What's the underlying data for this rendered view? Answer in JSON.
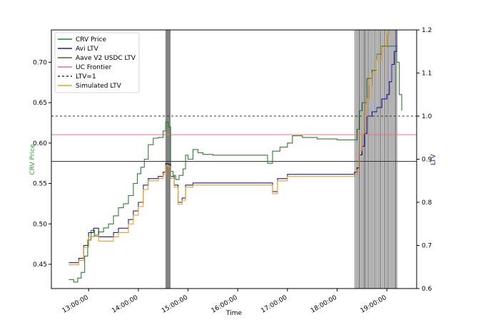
{
  "chart_data": {
    "type": "line",
    "x_axis": {
      "label": "Time",
      "ticks": [
        "13:00:00",
        "14:00:00",
        "15:00:00",
        "16:00:00",
        "17:00:00",
        "18:00:00",
        "19:00:00"
      ],
      "tick_hours": [
        13,
        14,
        15,
        16,
        17,
        18,
        19
      ],
      "range_hours": [
        12.25,
        19.6
      ]
    },
    "y_left": {
      "label": "CRV Price",
      "color": "#2ca02c",
      "ticks": [
        "0.45",
        "0.50",
        "0.55",
        "0.60",
        "0.65",
        "0.70"
      ],
      "tick_values": [
        0.45,
        0.5,
        0.55,
        0.6,
        0.65,
        0.7
      ],
      "ylim": [
        0.42,
        0.74
      ]
    },
    "y_right": {
      "label": "LTV",
      "color": "#1f1f9f",
      "ticks": [
        "0.6",
        "0.7",
        "0.8",
        "0.9",
        "1.0",
        "1.1",
        "1.2"
      ],
      "tick_values": [
        0.6,
        0.7,
        0.8,
        0.9,
        1.0,
        1.1,
        1.2
      ],
      "ylim": [
        0.6,
        1.2
      ]
    },
    "legend": {
      "placement": "top-left",
      "entries": [
        {
          "label": "CRV Price",
          "color": "#2e7d32",
          "style": "solid"
        },
        {
          "label": "Avi LTV",
          "color": "#1a1aa0",
          "style": "solid"
        },
        {
          "label": "Aave V2 USDC LTV",
          "color": "#555555",
          "style": "solid"
        },
        {
          "label": "UC Frontier",
          "color": "#f07070",
          "style": "solid"
        },
        {
          "label": "LTV=1",
          "color": "#333333",
          "style": "dashed"
        },
        {
          "label": "Simulated LTV",
          "color": "#f0a020",
          "style": "solid"
        }
      ]
    },
    "reference_lines": [
      {
        "label": "LTV=1",
        "axis": "right",
        "value": 1.0,
        "color": "#333333",
        "style": "dashed"
      },
      {
        "label": "UC Frontier",
        "axis": "right",
        "value": 0.957,
        "color": "#f07070",
        "style": "solid"
      },
      {
        "label": "Aave V2 USDC LTV",
        "axis": "right",
        "value": 0.895,
        "color": "#333333",
        "style": "solid"
      }
    ],
    "event_bands": [
      {
        "start": 14.55,
        "end": 14.64,
        "lines": [
          14.55,
          14.57,
          14.585,
          14.6,
          14.615,
          14.625,
          14.64
        ]
      },
      {
        "start": 18.36,
        "end": 19.2,
        "lines": [
          18.36,
          18.39,
          18.42,
          18.44,
          18.46,
          18.49,
          18.52,
          18.54,
          18.56,
          18.58,
          18.61,
          18.63,
          18.66,
          18.69,
          18.72,
          18.75,
          18.77,
          18.8,
          18.83,
          18.86,
          18.88,
          18.91,
          18.94,
          18.96,
          18.99,
          19.02,
          19.04,
          19.07,
          19.1,
          19.13,
          19.16,
          19.18,
          19.2
        ]
      }
    ],
    "series": [
      {
        "name": "CRV Price",
        "axis": "left",
        "color": "#2e7d32",
        "step": true,
        "x": [
          12.6,
          12.7,
          12.78,
          12.85,
          12.92,
          12.98,
          13.05,
          13.12,
          13.2,
          13.3,
          13.4,
          13.5,
          13.6,
          13.7,
          13.8,
          13.9,
          13.98,
          14.05,
          14.12,
          14.2,
          14.3,
          14.4,
          14.5,
          14.55,
          14.6,
          14.65,
          14.7,
          14.75,
          14.82,
          14.9,
          14.95,
          15.0,
          15.1,
          15.2,
          15.3,
          15.5,
          15.8,
          16.2,
          16.6,
          16.7,
          16.85,
          17.0,
          17.1,
          17.3,
          17.6,
          18.0,
          18.35,
          18.4,
          18.45,
          18.5,
          18.6,
          18.7,
          18.8,
          18.9,
          19.0,
          19.1,
          19.15,
          19.2,
          19.25,
          19.3
        ],
        "y": [
          0.431,
          0.428,
          0.433,
          0.44,
          0.46,
          0.48,
          0.492,
          0.485,
          0.49,
          0.495,
          0.5,
          0.51,
          0.52,
          0.525,
          0.535,
          0.55,
          0.562,
          0.57,
          0.58,
          0.598,
          0.606,
          0.607,
          0.615,
          0.626,
          0.62,
          0.565,
          0.56,
          0.555,
          0.56,
          0.568,
          0.585,
          0.58,
          0.592,
          0.588,
          0.586,
          0.585,
          0.585,
          0.585,
          0.575,
          0.59,
          0.595,
          0.6,
          0.609,
          0.607,
          0.605,
          0.604,
          0.604,
          0.617,
          0.64,
          0.65,
          0.68,
          0.69,
          0.71,
          0.72,
          0.72,
          0.72,
          0.72,
          0.7,
          0.66,
          0.64
        ]
      },
      {
        "name": "Avi LTV",
        "axis": "right",
        "color": "#1a1aa0",
        "step": true,
        "x": [
          12.6,
          12.7,
          12.8,
          12.9,
          13.0,
          13.1,
          13.2,
          13.3,
          13.5,
          13.6,
          13.7,
          13.8,
          13.9,
          14.0,
          14.1,
          14.2,
          14.3,
          14.4,
          14.5,
          14.55,
          14.6,
          14.65,
          14.72,
          14.8,
          14.88,
          14.95,
          15.1,
          15.5,
          16.0,
          16.5,
          16.7,
          16.8,
          17.0,
          17.5,
          18.0,
          18.35,
          18.4,
          18.45,
          18.5,
          18.55,
          18.6,
          18.7,
          18.8,
          18.9,
          19.0,
          19.05,
          19.1,
          19.15,
          19.2
        ],
        "y": [
          0.66,
          0.66,
          0.67,
          0.7,
          0.73,
          0.74,
          0.72,
          0.72,
          0.73,
          0.74,
          0.74,
          0.76,
          0.78,
          0.8,
          0.84,
          0.855,
          0.855,
          0.86,
          0.87,
          0.89,
          0.888,
          0.86,
          0.84,
          0.8,
          0.81,
          0.84,
          0.845,
          0.845,
          0.845,
          0.845,
          0.825,
          0.855,
          0.865,
          0.865,
          0.865,
          0.87,
          0.88,
          0.91,
          0.93,
          0.96,
          1.0,
          1.01,
          1.02,
          1.04,
          1.05,
          1.08,
          1.12,
          1.15,
          1.2
        ]
      },
      {
        "name": "Simulated LTV",
        "axis": "right",
        "color": "#f0a020",
        "step": true,
        "x": [
          12.6,
          12.7,
          12.8,
          12.9,
          13.0,
          13.1,
          13.2,
          13.3,
          13.5,
          13.6,
          13.7,
          13.8,
          13.9,
          14.0,
          14.1,
          14.2,
          14.3,
          14.4,
          14.5,
          14.55,
          14.6,
          14.65,
          14.72,
          14.8,
          14.88,
          14.95,
          15.1,
          15.5,
          16.0,
          16.5,
          16.7,
          16.8,
          17.0,
          17.5,
          18.0,
          18.35,
          18.4,
          18.45,
          18.5,
          18.55,
          18.6,
          18.65,
          18.7,
          18.8,
          18.9,
          19.0,
          19.05
        ],
        "y": [
          0.655,
          0.655,
          0.665,
          0.695,
          0.72,
          0.725,
          0.71,
          0.71,
          0.72,
          0.73,
          0.73,
          0.75,
          0.77,
          0.79,
          0.83,
          0.85,
          0.85,
          0.855,
          0.865,
          0.885,
          0.883,
          0.855,
          0.835,
          0.795,
          0.805,
          0.835,
          0.84,
          0.84,
          0.84,
          0.84,
          0.82,
          0.85,
          0.86,
          0.86,
          0.86,
          0.865,
          0.875,
          0.92,
          0.96,
          1.0,
          1.04,
          1.07,
          1.1,
          1.13,
          1.16,
          1.19,
          1.2
        ]
      }
    ]
  }
}
